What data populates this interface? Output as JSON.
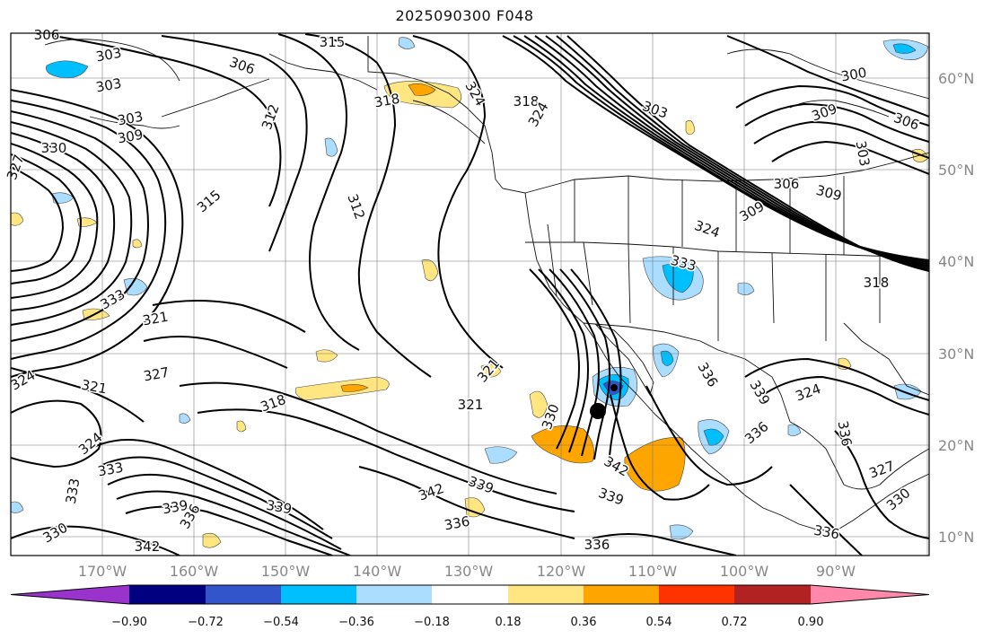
{
  "title": "2025090300 F048",
  "lat_labels": [
    "60°N",
    "50°N",
    "40°N",
    "30°N",
    "20°N",
    "10°N"
  ],
  "lon_labels": [
    "170°W",
    "160°W",
    "150°W",
    "140°W",
    "130°W",
    "120°W",
    "110°W",
    "100°W",
    "90°W"
  ],
  "colorbar": {
    "colors": [
      "#9933cc",
      "#000080",
      "#3355cc",
      "#00bfff",
      "#aaddff",
      "#ffffff",
      "#ffe680",
      "#ffa500",
      "#ff3300",
      "#b22222",
      "#ff88aa"
    ],
    "tick_labels": [
      "−0.90",
      "−0.72",
      "−0.54",
      "−0.36",
      "−0.18",
      "0.18",
      "0.36",
      "0.54",
      "0.72",
      "0.90"
    ]
  },
  "contour_labels": [
    {
      "t": "306"
    },
    {
      "t": "303"
    },
    {
      "t": "303"
    },
    {
      "t": "306"
    },
    {
      "t": "315"
    },
    {
      "t": "318"
    },
    {
      "t": "312"
    },
    {
      "t": "303"
    },
    {
      "t": "309"
    },
    {
      "t": "330"
    },
    {
      "t": "327"
    },
    {
      "t": "315"
    },
    {
      "t": "312"
    },
    {
      "t": "324"
    },
    {
      "t": "318"
    },
    {
      "t": "324"
    },
    {
      "t": "303"
    },
    {
      "t": "300"
    },
    {
      "t": "309"
    },
    {
      "t": "306"
    },
    {
      "t": "303"
    },
    {
      "t": "306"
    },
    {
      "t": "309"
    },
    {
      "t": "309"
    },
    {
      "t": "324"
    },
    {
      "t": "333"
    },
    {
      "t": "318"
    },
    {
      "t": "333"
    },
    {
      "t": "321"
    },
    {
      "t": "327"
    },
    {
      "t": "324"
    },
    {
      "t": "321"
    },
    {
      "t": "318"
    },
    {
      "t": "321"
    },
    {
      "t": "321"
    },
    {
      "t": "330"
    },
    {
      "t": "336"
    },
    {
      "t": "339"
    },
    {
      "t": "324"
    },
    {
      "t": "342"
    },
    {
      "t": "324"
    },
    {
      "t": "336"
    },
    {
      "t": "333"
    },
    {
      "t": "339"
    },
    {
      "t": "336"
    },
    {
      "t": "339"
    },
    {
      "t": "333"
    },
    {
      "t": "342"
    },
    {
      "t": "339"
    },
    {
      "t": "342"
    },
    {
      "t": "336"
    },
    {
      "t": "336"
    },
    {
      "t": "339"
    },
    {
      "t": "336"
    },
    {
      "t": "327"
    },
    {
      "t": "330"
    },
    {
      "t": "336"
    },
    {
      "t": "330"
    }
  ]
}
